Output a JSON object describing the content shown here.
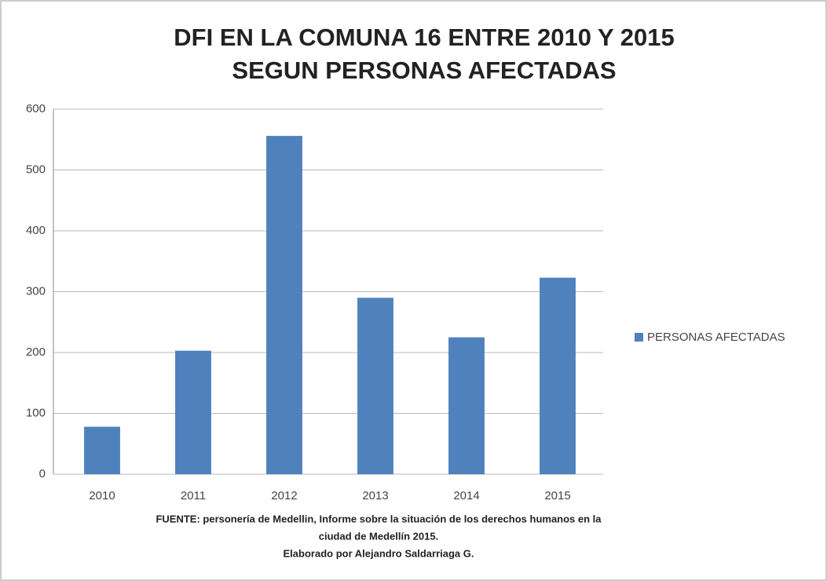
{
  "chart_data": {
    "type": "bar",
    "title": [
      "DFI EN LA COMUNA 16 ENTRE 2010 Y 2015",
      "SEGUN PERSONAS AFECTADAS"
    ],
    "categories": [
      "2010",
      "2011",
      "2012",
      "2013",
      "2014",
      "2015"
    ],
    "series": [
      {
        "name": "PERSONAS AFECTADAS",
        "color": "#4f81bd",
        "values": [
          78,
          203,
          556,
          290,
          225,
          323
        ]
      }
    ],
    "ylim": [
      0,
      600
    ],
    "yticks": [
      0,
      100,
      200,
      300,
      400,
      500,
      600
    ],
    "grid": true,
    "legend": "right",
    "source": [
      "FUENTE: personería de Medellin, Informe sobre la situación de los derechos humanos en la",
      "ciudad de Medellín 2015.",
      "Elaborado por Alejandro Saldarriaga G."
    ]
  }
}
